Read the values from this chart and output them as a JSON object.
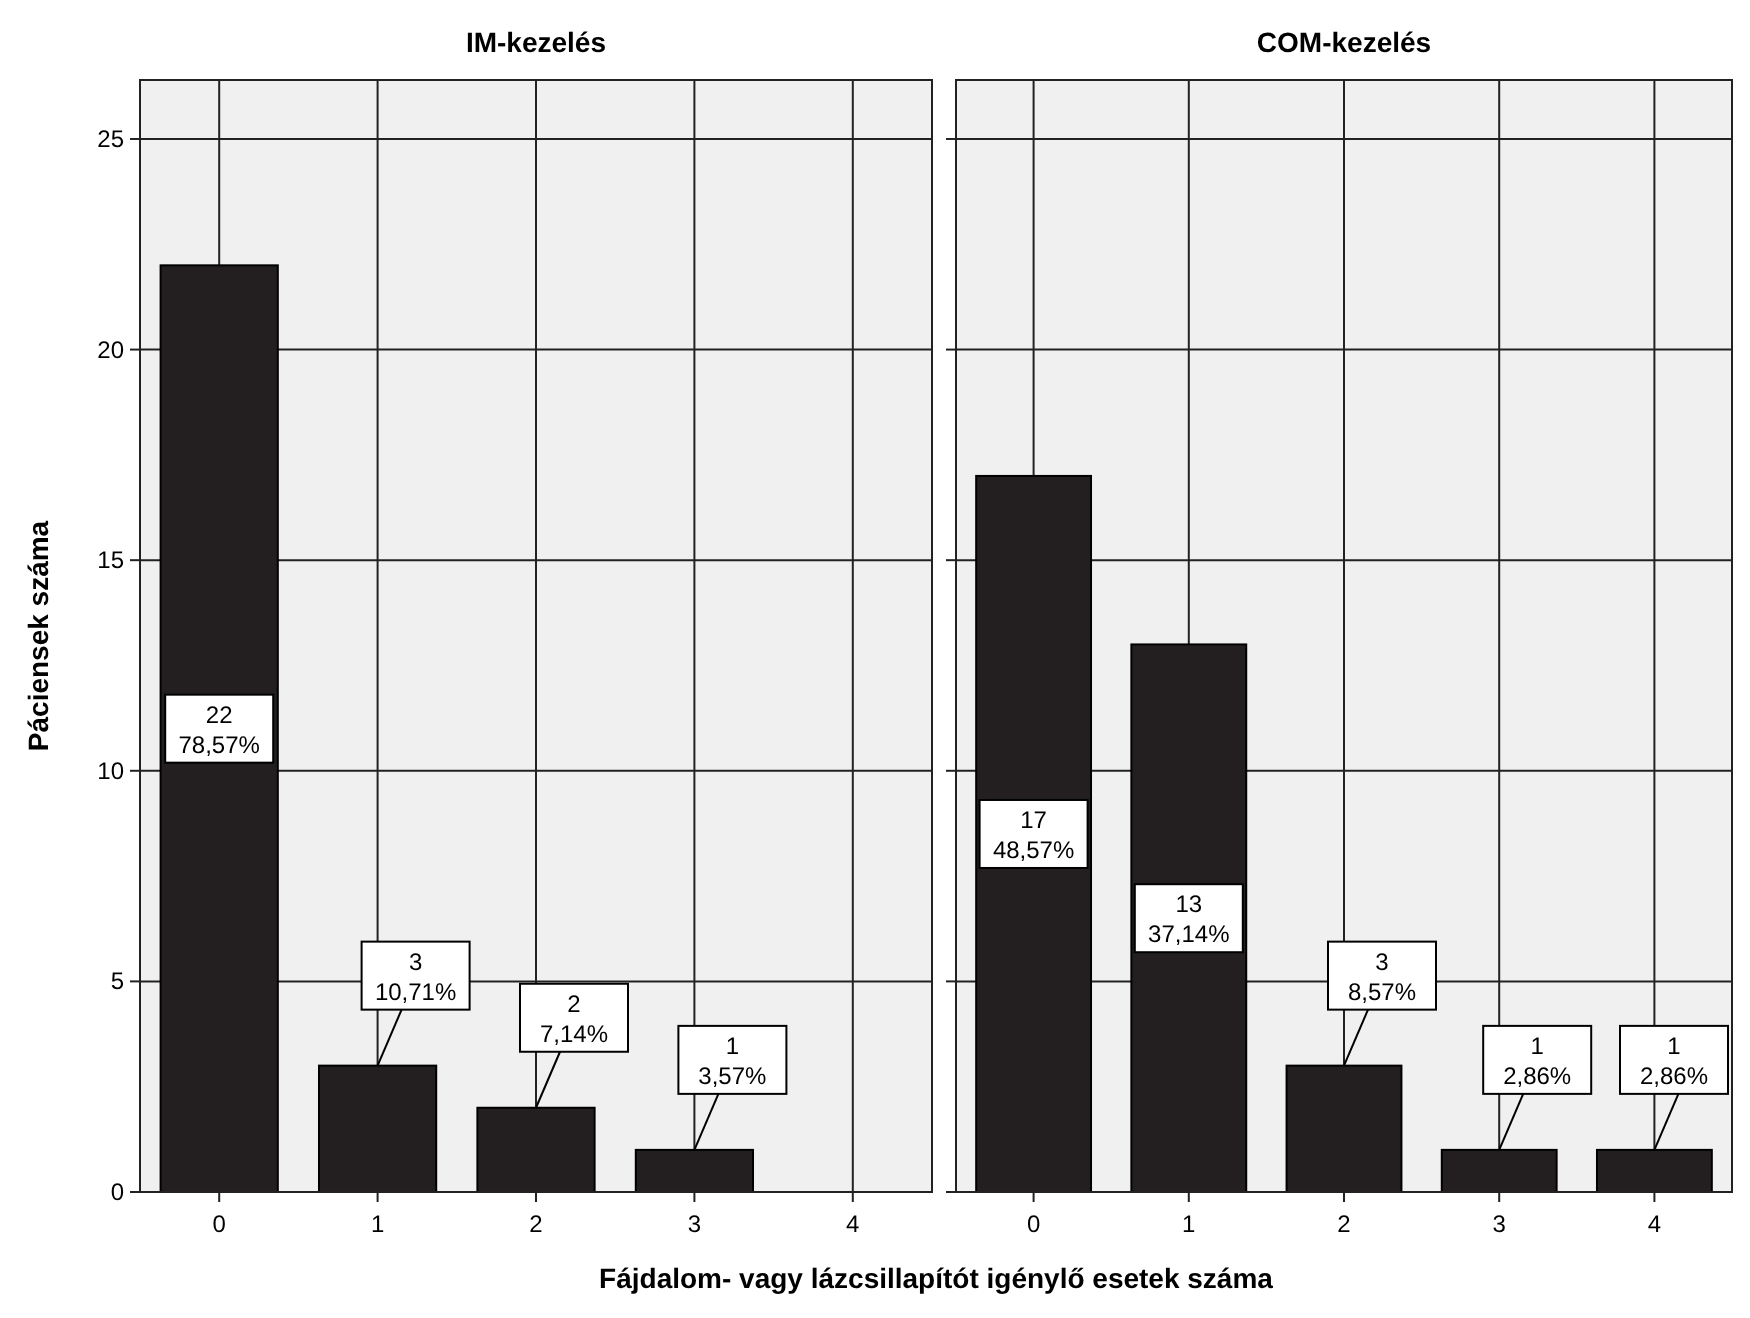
{
  "chart_data": [
    {
      "type": "bar",
      "title": "IM-kezelés",
      "ylabel": "Páciensek száma",
      "xlabel": "Fájdalom- vagy lázcsillapítót igénylő esetek száma",
      "categories": [
        "0",
        "1",
        "2",
        "3",
        "4"
      ],
      "values": [
        22,
        3,
        2,
        1,
        0
      ],
      "value_labels": [
        "22\n78,57%",
        "3\n10,71%",
        "2\n7,14%",
        "1\n3,57%",
        null
      ],
      "color": "#231f20",
      "ylim": [
        0,
        26.4
      ],
      "yticks": [
        0,
        5,
        10,
        15,
        20,
        25
      ],
      "grid": true
    },
    {
      "type": "bar",
      "title": "COM-kezelés",
      "categories": [
        "0",
        "1",
        "2",
        "3",
        "4"
      ],
      "values": [
        17,
        13,
        3,
        1,
        1
      ],
      "value_labels": [
        "17\n48,57%",
        "13\n37,14%",
        "3\n8,57%",
        "1\n2,86%",
        "1\n2,86%"
      ],
      "color": "#231f20",
      "ylim": [
        0,
        26.4
      ],
      "yticks": [
        0,
        5,
        10,
        15,
        20,
        25
      ],
      "grid": true,
      "tick_labels": "x"
    }
  ]
}
